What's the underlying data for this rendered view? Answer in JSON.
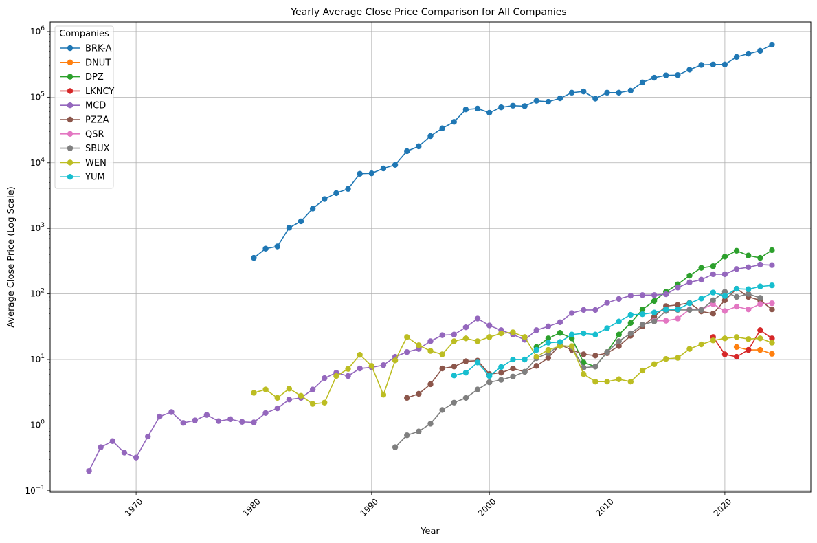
{
  "chart_data": {
    "type": "line",
    "title": "Yearly Average Close Price Comparison for All Companies",
    "xlabel": "Year",
    "ylabel": "Average Close Price (Log Scale)",
    "xlim": [
      1962.7,
      2027.3
    ],
    "ylim": [
      0.095,
      1400000
    ],
    "yscale": "log",
    "grid": true,
    "legend_title": "Companies",
    "legend_position": "upper-left",
    "x_ticks": [
      1970,
      1980,
      1990,
      2000,
      2010,
      2020
    ],
    "y_ticks": [
      {
        "value": 0.1,
        "label": "10",
        "exp": "−1"
      },
      {
        "value": 1,
        "label": "10",
        "exp": "0"
      },
      {
        "value": 10,
        "label": "10",
        "exp": "1"
      },
      {
        "value": 100,
        "label": "10",
        "exp": "2"
      },
      {
        "value": 1000,
        "label": "10",
        "exp": "3"
      },
      {
        "value": 10000,
        "label": "10",
        "exp": "4"
      },
      {
        "value": 100000,
        "label": "10",
        "exp": "5"
      },
      {
        "value": 1000000,
        "label": "10",
        "exp": "6"
      }
    ],
    "series": [
      {
        "name": "BRK-A",
        "color": "#1f77b4",
        "x0": 1980,
        "values": [
          355,
          490,
          530,
          1020,
          1280,
          2000,
          2800,
          3450,
          4000,
          6800,
          6900,
          8200,
          9300,
          15000,
          17800,
          25500,
          33500,
          42000,
          65000,
          67000,
          58000,
          70000,
          74000,
          73000,
          88000,
          85000,
          96000,
          117000,
          122000,
          95000,
          117000,
          117000,
          126000,
          168000,
          198000,
          215000,
          217000,
          262000,
          310000,
          315000,
          315000,
          410000,
          460000,
          510000,
          630000
        ]
      },
      {
        "name": "DNUT",
        "color": "#ff7f0e",
        "x0": 2021,
        "values": [
          15.5,
          14,
          14,
          12.2
        ]
      },
      {
        "name": "DPZ",
        "color": "#2ca02c",
        "x0": 2004,
        "values": [
          15.5,
          21,
          25.5,
          21,
          9,
          7.8,
          13,
          24,
          36,
          58,
          78,
          108,
          140,
          190,
          250,
          265,
          370,
          455,
          385,
          355,
          465
        ]
      },
      {
        "name": "LKNCY",
        "color": "#d62728",
        "x0": 2019,
        "values": [
          22,
          12,
          11,
          14,
          28,
          21
        ]
      },
      {
        "name": "MCD",
        "color": "#9467bd",
        "x0": 1966,
        "values": [
          0.2,
          0.46,
          0.57,
          0.38,
          0.32,
          0.67,
          1.35,
          1.58,
          1.08,
          1.18,
          1.43,
          1.15,
          1.23,
          1.12,
          1.1,
          1.53,
          1.8,
          2.45,
          2.6,
          3.5,
          5.2,
          6.3,
          5.6,
          7.3,
          7.6,
          8.2,
          11,
          13,
          14.5,
          19,
          23.5,
          24,
          31,
          42,
          33,
          28,
          24,
          20,
          28,
          32,
          37,
          51,
          57,
          57,
          73,
          84,
          94,
          96,
          96,
          99,
          125,
          150,
          165,
          200,
          200,
          240,
          255,
          280,
          275
        ]
      },
      {
        "name": "PZZA",
        "color": "#8c564b",
        "x0": 1993,
        "values": [
          2.6,
          3.0,
          4.2,
          7.3,
          7.8,
          9.4,
          9.6,
          6.0,
          6.3,
          7.3,
          6.5,
          8.0,
          10.6,
          16.8,
          14.0,
          12.0,
          11.5,
          12.5,
          16,
          23,
          32,
          45,
          65,
          68,
          73,
          54,
          50,
          80,
          120,
          90,
          80,
          58
        ]
      },
      {
        "name": "QSR",
        "color": "#e377c2",
        "x0": 2014,
        "values": [
          39,
          39,
          42,
          58,
          58,
          70,
          55,
          64,
          58,
          70,
          72
        ]
      },
      {
        "name": "SBUX",
        "color": "#7f7f7f",
        "x0": 1992,
        "values": [
          0.46,
          0.7,
          0.8,
          1.05,
          1.7,
          2.2,
          2.6,
          3.5,
          4.5,
          4.9,
          5.5,
          6.5,
          10.5,
          12.5,
          16.5,
          15.5,
          7.5,
          7.8,
          13,
          19,
          25,
          34,
          38,
          55,
          57,
          57,
          57,
          80,
          108,
          90,
          100,
          87
        ]
      },
      {
        "name": "WEN",
        "color": "#bcbd22",
        "x0": 1980,
        "values": [
          3.1,
          3.5,
          2.6,
          3.6,
          2.8,
          2.1,
          2.2,
          5.6,
          7.2,
          11.8,
          8.0,
          2.9,
          9.7,
          22,
          16.5,
          13.5,
          12.0,
          19,
          21,
          19,
          22,
          25,
          26,
          22,
          11,
          14,
          16,
          16,
          6.0,
          4.6,
          4.6,
          5.0,
          4.6,
          6.8,
          8.5,
          10.2,
          10.6,
          14.5,
          17,
          19.5,
          21,
          22,
          20.5,
          21,
          18
        ]
      },
      {
        "name": "YUM",
        "color": "#17becf",
        "x0": 1997,
        "values": [
          5.7,
          6.3,
          9.0,
          5.6,
          7.7,
          10,
          10,
          14,
          18,
          18.5,
          24,
          25,
          24,
          30,
          38,
          48,
          49,
          52,
          58,
          58,
          72,
          85,
          105,
          93,
          120,
          118,
          130,
          135
        ]
      }
    ]
  }
}
